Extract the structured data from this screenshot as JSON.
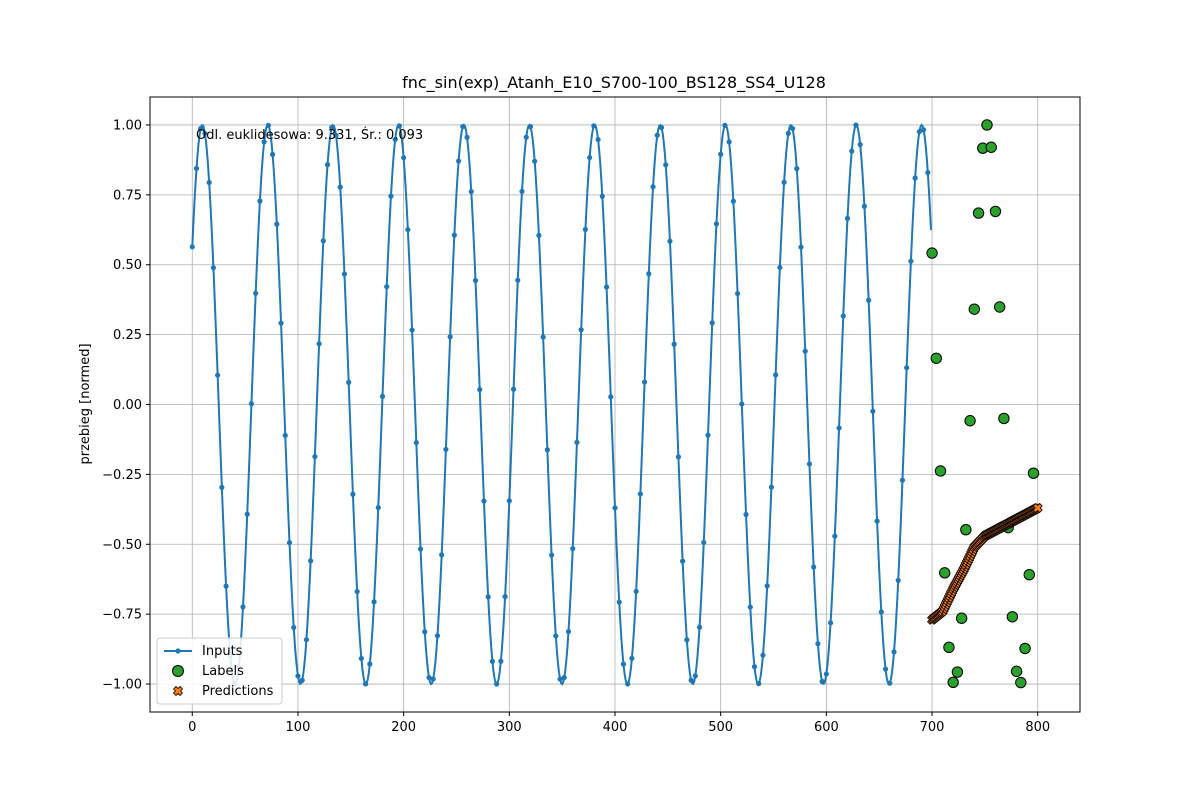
{
  "chart_data": {
    "type": "line",
    "title": "fnc_sin(exp)_Atanh_E10_S700-100_BS128_SS4_U128",
    "xlabel": "",
    "ylabel": "przebieg [normed]",
    "annotation": "Odl. euklidesowa: 9.331, Śr.: 0.093",
    "xlim": [
      -40,
      840
    ],
    "ylim": [
      -1.1,
      1.1
    ],
    "x_ticks": [
      0,
      100,
      200,
      300,
      400,
      500,
      600,
      700,
      800
    ],
    "y_ticks": [
      -1.0,
      -0.75,
      -0.5,
      -0.25,
      0.0,
      0.25,
      0.5,
      0.75,
      1.0
    ],
    "y_tick_labels": [
      "−1.00",
      "−0.75",
      "−0.50",
      "−0.25",
      "0.00",
      "0.25",
      "0.50",
      "0.75",
      "1.00"
    ],
    "grid": true,
    "legend_position": "lower-left",
    "series": [
      {
        "name": "Inputs",
        "style": "line-with-dots",
        "color": "#1f77b4",
        "x_range": [
          0,
          699
        ],
        "x_step": 4,
        "generator": "sin(0.10155*x + 0.5993)"
      },
      {
        "name": "Labels",
        "style": "scatter-circle",
        "color": "#2ca02c",
        "x_range": [
          700,
          799
        ],
        "x_step": 4,
        "generator": "sin(0.10155*x + 0.5993)"
      },
      {
        "name": "Predictions",
        "style": "scatter-x",
        "color": "#ff7f0e",
        "points": [
          [
            700,
            -0.77
          ],
          [
            710,
            -0.74
          ],
          [
            720,
            -0.66
          ],
          [
            730,
            -0.59
          ],
          [
            740,
            -0.51
          ],
          [
            750,
            -0.47
          ],
          [
            760,
            -0.45
          ],
          [
            770,
            -0.43
          ],
          [
            780,
            -0.41
          ],
          [
            790,
            -0.39
          ],
          [
            800,
            -0.37
          ]
        ]
      }
    ]
  }
}
